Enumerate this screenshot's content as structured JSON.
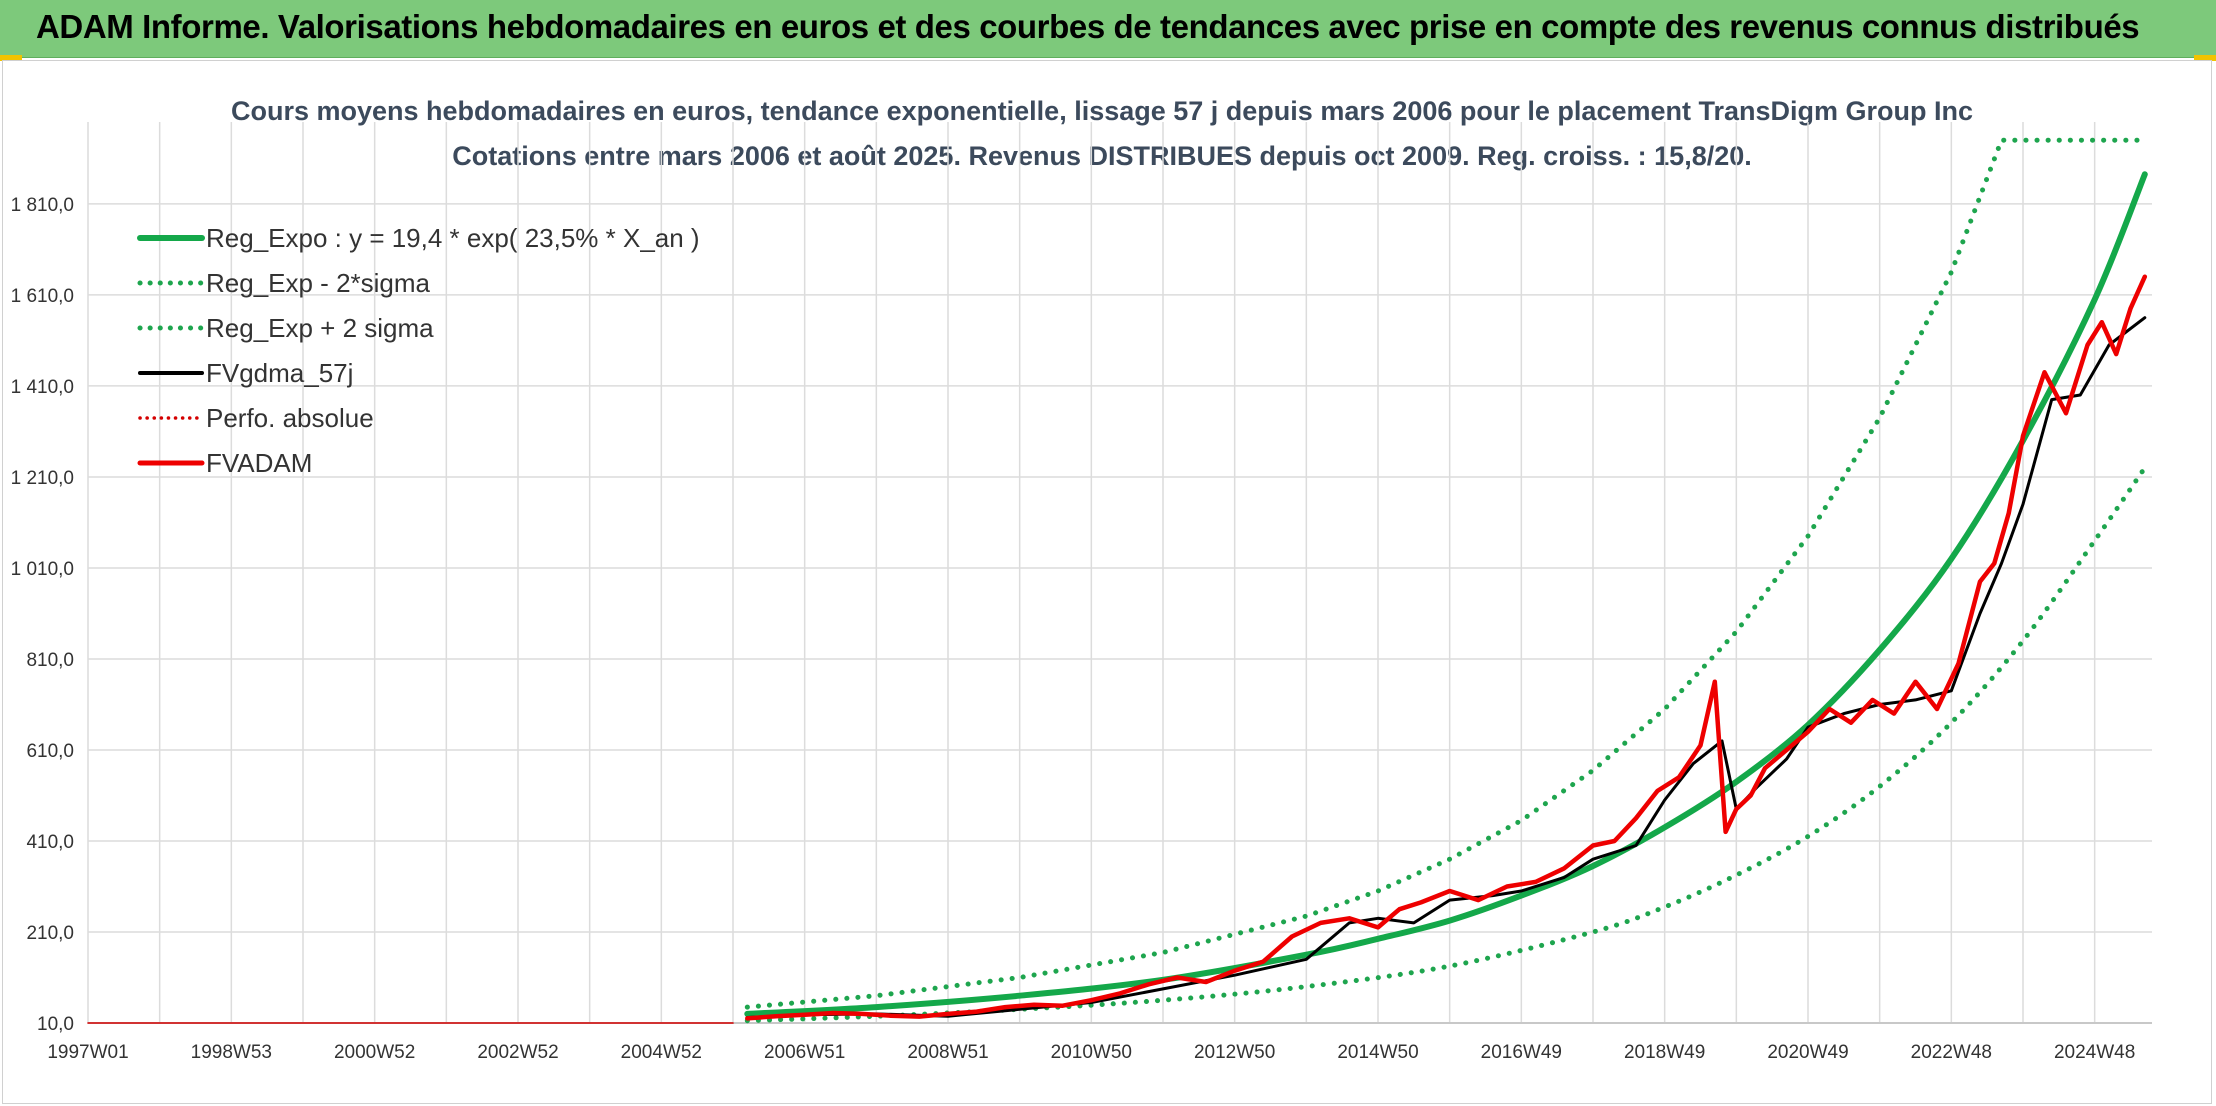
{
  "banner": {
    "title": "ADAM Informe. Valorisations hebdomadaires en euros et des courbes de tendances avec prise en compte des revenus connus distribués"
  },
  "colors": {
    "banner_bg": "#7dc97b",
    "trend": "#14a84a",
    "band": "#1ea54e",
    "fvgdma": "#000000",
    "perfo": "#d40000",
    "fvadam": "#ee0000",
    "title": "#3c4a5c"
  },
  "chart_data": {
    "type": "line",
    "title": "Cours moyens hebdomadaires en euros, tendance exponentielle, lissage 57 j depuis mars 2006 pour le placement TransDigm Group Inc",
    "subtitle": "Cotations entre mars 2006 et août 2025. Revenus DISTRIBUES depuis oct 2009. Reg. croiss. : 15,8/20.",
    "xlabel": "",
    "ylabel": "",
    "x_range": [
      1997.0,
      2025.8
    ],
    "ylim": [
      10,
      1990
    ],
    "y_ticks": [
      "10,0",
      "210,0",
      "410,0",
      "610,0",
      "810,0",
      "1 010,0",
      "1 210,0",
      "1 410,0",
      "1 610,0",
      "1 810,0"
    ],
    "y_tick_values": [
      10,
      210,
      410,
      610,
      810,
      1010,
      1210,
      1410,
      1610,
      1810
    ],
    "x_ticks": [
      "1997W01",
      "1998W53",
      "2000W52",
      "2002W52",
      "2004W52",
      "2006W51",
      "2008W51",
      "2010W50",
      "2012W50",
      "2014W50",
      "2016W49",
      "2018W49",
      "2020W49",
      "2022W48",
      "2024W48"
    ],
    "x_tick_values": [
      1997.0,
      1999.0,
      2001.0,
      2003.0,
      2005.0,
      2007.0,
      2009.0,
      2011.0,
      2013.0,
      2015.0,
      2017.0,
      2019.0,
      2021.0,
      2023.0,
      2025.0
    ],
    "grid": true,
    "legend_position": "top-left",
    "legend": [
      "Reg_Expo : y = 19,4 * exp( 23,5% *  X_an )",
      "Reg_Exp - 2*sigma",
      "Reg_Exp + 2 sigma",
      "FVgdma_57j",
      "Perfo. absolue",
      "FVADAM"
    ],
    "series": [
      {
        "name": "Reg_Expo : y = 19,4 * exp( 23,5% *  X_an )",
        "style": "solid",
        "color": "#14a84a",
        "x": [
          2006.2,
          2008.0,
          2010.0,
          2012.0,
          2014.0,
          2015.0,
          2016.0,
          2017.0,
          2018.0,
          2019.0,
          2020.0,
          2021.0,
          2022.0,
          2023.0,
          2024.0,
          2025.0,
          2025.7
        ],
        "y": [
          30,
          45,
          70,
          105,
          160,
          195,
          235,
          290,
          355,
          440,
          540,
          665,
          830,
          1030,
          1290,
          1600,
          1875
        ]
      },
      {
        "name": "Reg_Exp - 2*sigma",
        "style": "dotted",
        "color": "#1ea54e",
        "x": [
          2006.2,
          2008.0,
          2010.0,
          2012.0,
          2014.0,
          2016.0,
          2018.0,
          2019.0,
          2020.0,
          2021.0,
          2022.0,
          2023.0,
          2024.0,
          2025.0,
          2025.7
        ],
        "y": [
          15,
          25,
          40,
          60,
          90,
          135,
          210,
          265,
          335,
          420,
          530,
          670,
          850,
          1070,
          1230
        ]
      },
      {
        "name": "Reg_Exp + 2 sigma",
        "style": "dotted",
        "color": "#1ea54e",
        "x": [
          2006.2,
          2008.0,
          2010.0,
          2012.0,
          2014.0,
          2015.0,
          2016.0,
          2017.0,
          2018.0,
          2019.0,
          2020.0,
          2021.0,
          2022.0,
          2023.0,
          2023.7,
          2024.0,
          2025.0,
          2025.7
        ],
        "y": [
          45,
          70,
          110,
          165,
          245,
          300,
          370,
          455,
          565,
          700,
          870,
          1080,
          1340,
          1660,
          1950,
          1950,
          1950,
          1950
        ]
      },
      {
        "name": "FVgdma_57j",
        "style": "solid",
        "color": "#000000",
        "x": [
          2006.2,
          2007.0,
          2008.0,
          2009.0,
          2010.0,
          2011.0,
          2012.0,
          2013.0,
          2014.0,
          2014.6,
          2015.0,
          2015.5,
          2016.0,
          2016.6,
          2017.0,
          2017.6,
          2018.0,
          2018.6,
          2019.0,
          2019.4,
          2019.8,
          2020.0,
          2020.3,
          2020.7,
          2021.0,
          2021.5,
          2022.0,
          2022.5,
          2023.0,
          2023.4,
          2023.7,
          2024.0,
          2024.4,
          2024.8,
          2025.2,
          2025.7
        ],
        "y": [
          22,
          28,
          30,
          25,
          40,
          55,
          85,
          115,
          150,
          230,
          240,
          230,
          280,
          290,
          300,
          330,
          370,
          400,
          500,
          580,
          630,
          480,
          530,
          590,
          660,
          690,
          710,
          720,
          740,
          910,
          1020,
          1150,
          1380,
          1390,
          1500,
          1560
        ]
      },
      {
        "name": "Perfo. absolue",
        "style": "dotted",
        "color": "#d40000",
        "x": [
          1997.0,
          2006.0
        ],
        "y": [
          10,
          10
        ]
      },
      {
        "name": "FVADAM",
        "style": "solid",
        "color": "#ee0000",
        "x": [
          2006.2,
          2006.6,
          2007.0,
          2007.4,
          2007.8,
          2008.2,
          2008.6,
          2009.0,
          2009.4,
          2009.8,
          2010.2,
          2010.6,
          2011.0,
          2011.4,
          2011.8,
          2012.2,
          2012.6,
          2013.0,
          2013.4,
          2013.8,
          2014.2,
          2014.6,
          2015.0,
          2015.3,
          2015.6,
          2016.0,
          2016.4,
          2016.8,
          2017.2,
          2017.6,
          2018.0,
          2018.3,
          2018.6,
          2018.9,
          2019.2,
          2019.5,
          2019.7,
          2019.85,
          2020.0,
          2020.2,
          2020.4,
          2020.7,
          2021.0,
          2021.3,
          2021.6,
          2021.9,
          2022.2,
          2022.5,
          2022.8,
          2023.1,
          2023.4,
          2023.6,
          2023.8,
          2024.0,
          2024.3,
          2024.6,
          2024.9,
          2025.1,
          2025.3,
          2025.5,
          2025.7
        ],
        "y": [
          20,
          25,
          28,
          32,
          30,
          26,
          24,
          30,
          35,
          45,
          50,
          48,
          60,
          75,
          95,
          110,
          100,
          125,
          145,
          200,
          230,
          240,
          220,
          260,
          275,
          300,
          280,
          310,
          320,
          350,
          400,
          410,
          460,
          520,
          550,
          620,
          760,
          430,
          480,
          510,
          570,
          610,
          650,
          700,
          670,
          720,
          690,
          760,
          700,
          800,
          980,
          1020,
          1130,
          1300,
          1440,
          1350,
          1500,
          1550,
          1480,
          1580,
          1650
        ]
      }
    ]
  }
}
